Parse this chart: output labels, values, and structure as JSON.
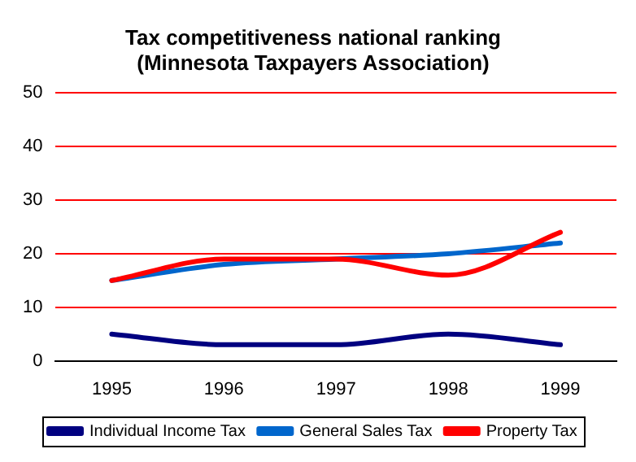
{
  "chart_data": {
    "type": "line",
    "title": [
      "Tax competitiveness national ranking",
      "(Minnesota Taxpayers Association)"
    ],
    "categories": [
      "1995",
      "1996",
      "1997",
      "1998",
      "1999"
    ],
    "series": [
      {
        "name": "Individual Income Tax",
        "color": "#000080",
        "values": [
          5,
          3,
          3,
          5,
          3
        ]
      },
      {
        "name": "General Sales Tax",
        "color": "#0066cc",
        "values": [
          15,
          18,
          19,
          20,
          22
        ]
      },
      {
        "name": "Property Tax",
        "color": "#ff0000",
        "values": [
          15,
          19,
          19,
          16,
          24
        ]
      }
    ],
    "ylim": [
      0,
      50
    ],
    "yticks": [
      0,
      10,
      20,
      30,
      40,
      50
    ],
    "grid": "y",
    "legend": "bottom",
    "marker": "none",
    "line_style": "solid"
  }
}
